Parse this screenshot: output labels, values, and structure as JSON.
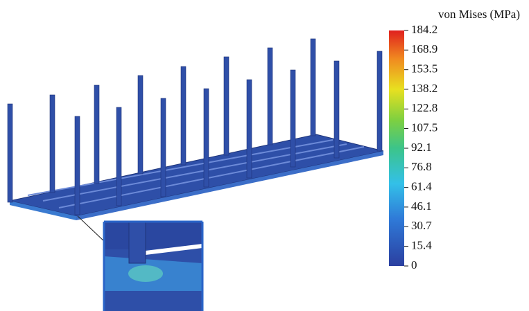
{
  "colorbar": {
    "title": "von Mises (MPa)",
    "lim": [
      0,
      184.2
    ],
    "ticks": [
      0,
      15.4,
      30.7,
      46.1,
      61.4,
      76.8,
      92.1,
      107.5,
      122.8,
      138.2,
      153.5,
      168.9,
      184.2
    ]
  }
}
